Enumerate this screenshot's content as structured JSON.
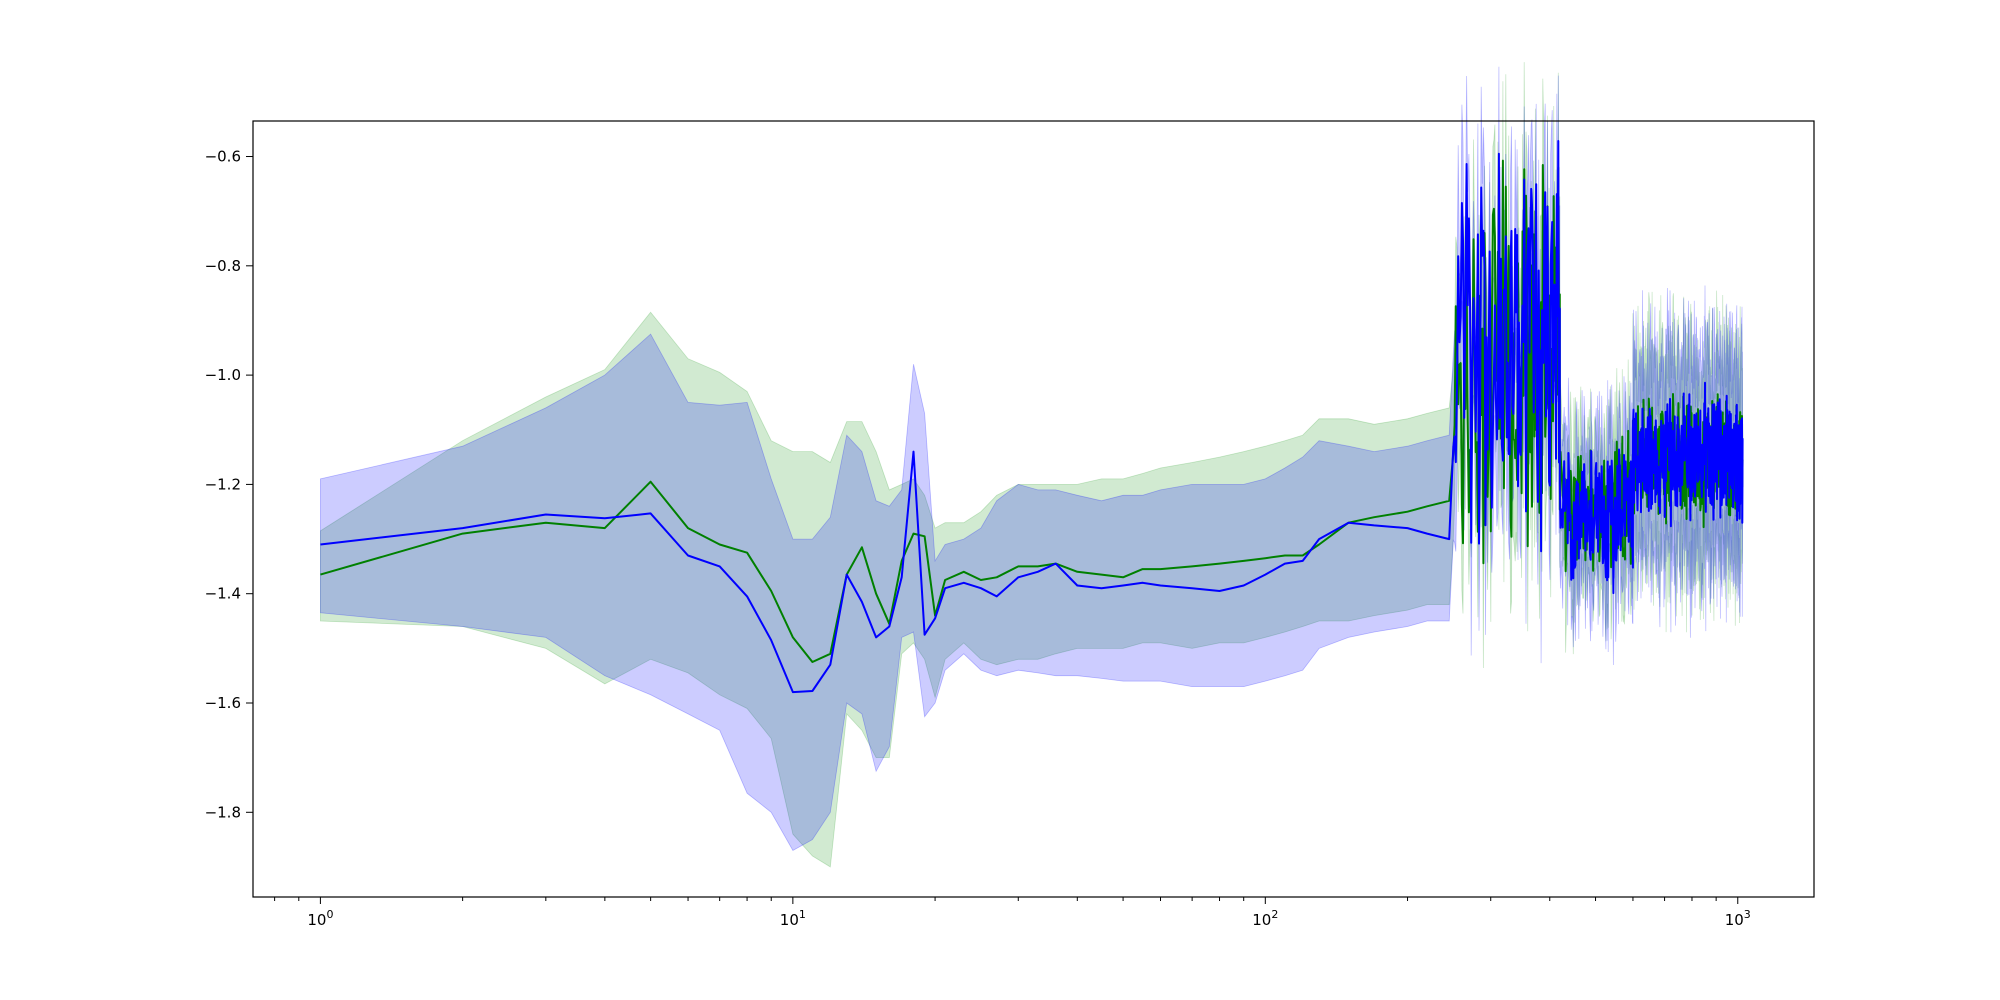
{
  "chart_data": {
    "type": "line",
    "title": "",
    "xlabel": "",
    "ylabel": "",
    "xscale": "log",
    "xlim": [
      0.72,
      1450
    ],
    "ylim": [
      -1.955,
      -0.535
    ],
    "grid": false,
    "legend": "none",
    "x_ticks": [
      {
        "value": 1,
        "base": "10",
        "exp": "0"
      },
      {
        "value": 10,
        "base": "10",
        "exp": "1"
      },
      {
        "value": 100,
        "base": "10",
        "exp": "2"
      },
      {
        "value": 1000,
        "base": "10",
        "exp": "3"
      }
    ],
    "y_ticks": [
      {
        "value": -0.6,
        "label": "−0.6"
      },
      {
        "value": -0.8,
        "label": "−0.8"
      },
      {
        "value": -1.0,
        "label": "−1.0"
      },
      {
        "value": -1.2,
        "label": "−1.2"
      },
      {
        "value": -1.4,
        "label": "−1.4"
      },
      {
        "value": -1.6,
        "label": "−1.6"
      },
      {
        "value": -1.8,
        "label": "−1.8"
      }
    ],
    "series": [
      {
        "color": "#008000",
        "band_color": "#2ca02c",
        "band_opacity": 0.22,
        "x": [
          1,
          2,
          3,
          4,
          5,
          6,
          7,
          8,
          9,
          10,
          11,
          12,
          13,
          14,
          15,
          16,
          17,
          18,
          19,
          20,
          21,
          23,
          25,
          27,
          30,
          33,
          36,
          40,
          45,
          50,
          55,
          60,
          70,
          80,
          90,
          100,
          110,
          120,
          130,
          150,
          170,
          200,
          220,
          245
        ],
        "mean": [
          -1.365,
          -1.29,
          -1.27,
          -1.28,
          -1.195,
          -1.28,
          -1.31,
          -1.325,
          -1.395,
          -1.48,
          -1.525,
          -1.51,
          -1.365,
          -1.315,
          -1.4,
          -1.455,
          -1.34,
          -1.29,
          -1.295,
          -1.44,
          -1.375,
          -1.36,
          -1.375,
          -1.37,
          -1.35,
          -1.35,
          -1.345,
          -1.36,
          -1.365,
          -1.37,
          -1.355,
          -1.355,
          -1.35,
          -1.345,
          -1.34,
          -1.335,
          -1.33,
          -1.33,
          -1.31,
          -1.27,
          -1.26,
          -1.25,
          -1.24,
          -1.23
        ],
        "upper": [
          -1.285,
          -1.12,
          -1.04,
          -0.99,
          -0.885,
          -0.97,
          -0.995,
          -1.03,
          -1.12,
          -1.14,
          -1.14,
          -1.16,
          -1.085,
          -1.085,
          -1.14,
          -1.21,
          -1.2,
          -1.19,
          -1.22,
          -1.28,
          -1.27,
          -1.27,
          -1.25,
          -1.22,
          -1.2,
          -1.2,
          -1.2,
          -1.2,
          -1.19,
          -1.19,
          -1.18,
          -1.17,
          -1.16,
          -1.15,
          -1.14,
          -1.13,
          -1.12,
          -1.11,
          -1.08,
          -1.08,
          -1.09,
          -1.08,
          -1.07,
          -1.06
        ],
        "lower": [
          -1.45,
          -1.46,
          -1.5,
          -1.565,
          -1.52,
          -1.545,
          -1.585,
          -1.61,
          -1.665,
          -1.84,
          -1.88,
          -1.9,
          -1.62,
          -1.65,
          -1.7,
          -1.7,
          -1.51,
          -1.49,
          -1.52,
          -1.59,
          -1.52,
          -1.49,
          -1.52,
          -1.53,
          -1.52,
          -1.52,
          -1.51,
          -1.5,
          -1.5,
          -1.5,
          -1.49,
          -1.49,
          -1.5,
          -1.49,
          -1.49,
          -1.48,
          -1.47,
          -1.46,
          -1.45,
          -1.45,
          -1.44,
          -1.43,
          -1.42,
          -1.42
        ]
      },
      {
        "color": "#0000ff",
        "band_color": "#0000ff",
        "band_opacity": 0.2,
        "x": [
          1,
          2,
          3,
          4,
          5,
          6,
          7,
          8,
          9,
          10,
          11,
          12,
          13,
          14,
          15,
          16,
          17,
          18,
          19,
          20,
          21,
          23,
          25,
          27,
          30,
          33,
          36,
          40,
          45,
          50,
          55,
          60,
          70,
          80,
          90,
          100,
          110,
          120,
          130,
          150,
          170,
          200,
          220,
          245
        ],
        "mean": [
          -1.31,
          -1.28,
          -1.255,
          -1.262,
          -1.253,
          -1.33,
          -1.35,
          -1.405,
          -1.485,
          -1.58,
          -1.578,
          -1.53,
          -1.365,
          -1.415,
          -1.48,
          -1.46,
          -1.37,
          -1.14,
          -1.475,
          -1.445,
          -1.39,
          -1.38,
          -1.39,
          -1.405,
          -1.37,
          -1.36,
          -1.345,
          -1.385,
          -1.39,
          -1.385,
          -1.38,
          -1.385,
          -1.39,
          -1.395,
          -1.385,
          -1.365,
          -1.345,
          -1.34,
          -1.3,
          -1.27,
          -1.275,
          -1.28,
          -1.29,
          -1.3
        ],
        "upper": [
          -1.19,
          -1.13,
          -1.06,
          -1.0,
          -0.925,
          -1.05,
          -1.055,
          -1.05,
          -1.19,
          -1.3,
          -1.3,
          -1.26,
          -1.11,
          -1.14,
          -1.23,
          -1.24,
          -1.21,
          -0.98,
          -1.07,
          -1.34,
          -1.31,
          -1.3,
          -1.28,
          -1.23,
          -1.2,
          -1.21,
          -1.21,
          -1.22,
          -1.23,
          -1.22,
          -1.22,
          -1.21,
          -1.2,
          -1.2,
          -1.2,
          -1.19,
          -1.17,
          -1.15,
          -1.12,
          -1.13,
          -1.14,
          -1.13,
          -1.12,
          -1.11
        ],
        "lower": [
          -1.435,
          -1.46,
          -1.48,
          -1.55,
          -1.585,
          -1.62,
          -1.65,
          -1.765,
          -1.8,
          -1.87,
          -1.85,
          -1.8,
          -1.6,
          -1.62,
          -1.725,
          -1.68,
          -1.48,
          -1.47,
          -1.625,
          -1.6,
          -1.54,
          -1.51,
          -1.54,
          -1.55,
          -1.54,
          -1.545,
          -1.55,
          -1.55,
          -1.555,
          -1.56,
          -1.56,
          -1.56,
          -1.57,
          -1.57,
          -1.57,
          -1.56,
          -1.55,
          -1.54,
          -1.5,
          -1.48,
          -1.47,
          -1.46,
          -1.45,
          -1.45
        ]
      }
    ],
    "noisy_tail_segments": [
      {
        "x_start": 250,
        "x_end": 420,
        "center": -0.95,
        "spread": 0.42,
        "band_half_width": 0.16
      },
      {
        "x_start": 420,
        "x_end": 600,
        "center": -1.25,
        "spread": 0.16,
        "band_half_width": 0.12
      },
      {
        "x_start": 600,
        "x_end": 1024,
        "center": -1.15,
        "spread": 0.14,
        "band_half_width": 0.17
      }
    ]
  }
}
